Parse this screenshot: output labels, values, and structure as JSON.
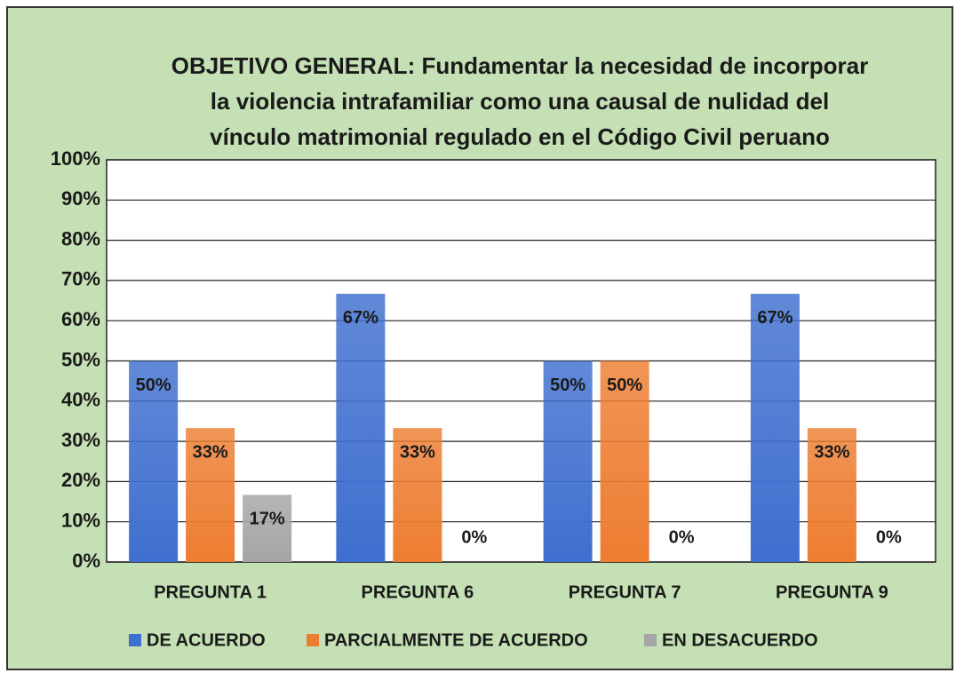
{
  "chart_data": {
    "type": "bar",
    "title": [
      "OBJETIVO GENERAL: Fundamentar la necesidad de incorporar",
      "la violencia intrafamiliar como una causal de nulidad del",
      "vínculo matrimonial regulado en el Código Civil peruano"
    ],
    "categories": [
      "PREGUNTA 1",
      "PREGUNTA 6",
      "PREGUNTA 7",
      "PREGUNTA 9"
    ],
    "series": [
      {
        "name": "DE ACUERDO",
        "color": "#3f6fcf",
        "values": [
          50,
          66.7,
          50,
          66.7
        ],
        "value_labels": [
          "50%",
          "67%",
          "50%",
          "67%"
        ]
      },
      {
        "name": "PARCIALMENTE DE ACUERDO",
        "color": "#ed7d31",
        "values": [
          33.3,
          33.3,
          50,
          33.3
        ],
        "value_labels": [
          "33%",
          "33%",
          "50%",
          "33%"
        ]
      },
      {
        "name": "EN DESACUERDO",
        "color": "#a5a5a5",
        "values": [
          16.7,
          0,
          0,
          0
        ],
        "value_labels": [
          "17%",
          "0%",
          "0%",
          "0%"
        ]
      }
    ],
    "ylim": [
      0,
      100
    ],
    "yticks": [
      {
        "value": 0,
        "label": "0%"
      },
      {
        "value": 10,
        "label": "10%"
      },
      {
        "value": 20,
        "label": "20%"
      },
      {
        "value": 30,
        "label": "30%"
      },
      {
        "value": 40,
        "label": "40%"
      },
      {
        "value": 50,
        "label": "50%"
      },
      {
        "value": 60,
        "label": "60%"
      },
      {
        "value": 70,
        "label": "70%"
      },
      {
        "value": 80,
        "label": "80%"
      },
      {
        "value": 90,
        "label": "90%"
      },
      {
        "value": 100,
        "label": "100%"
      }
    ],
    "grid": true,
    "legend": "bottom"
  }
}
